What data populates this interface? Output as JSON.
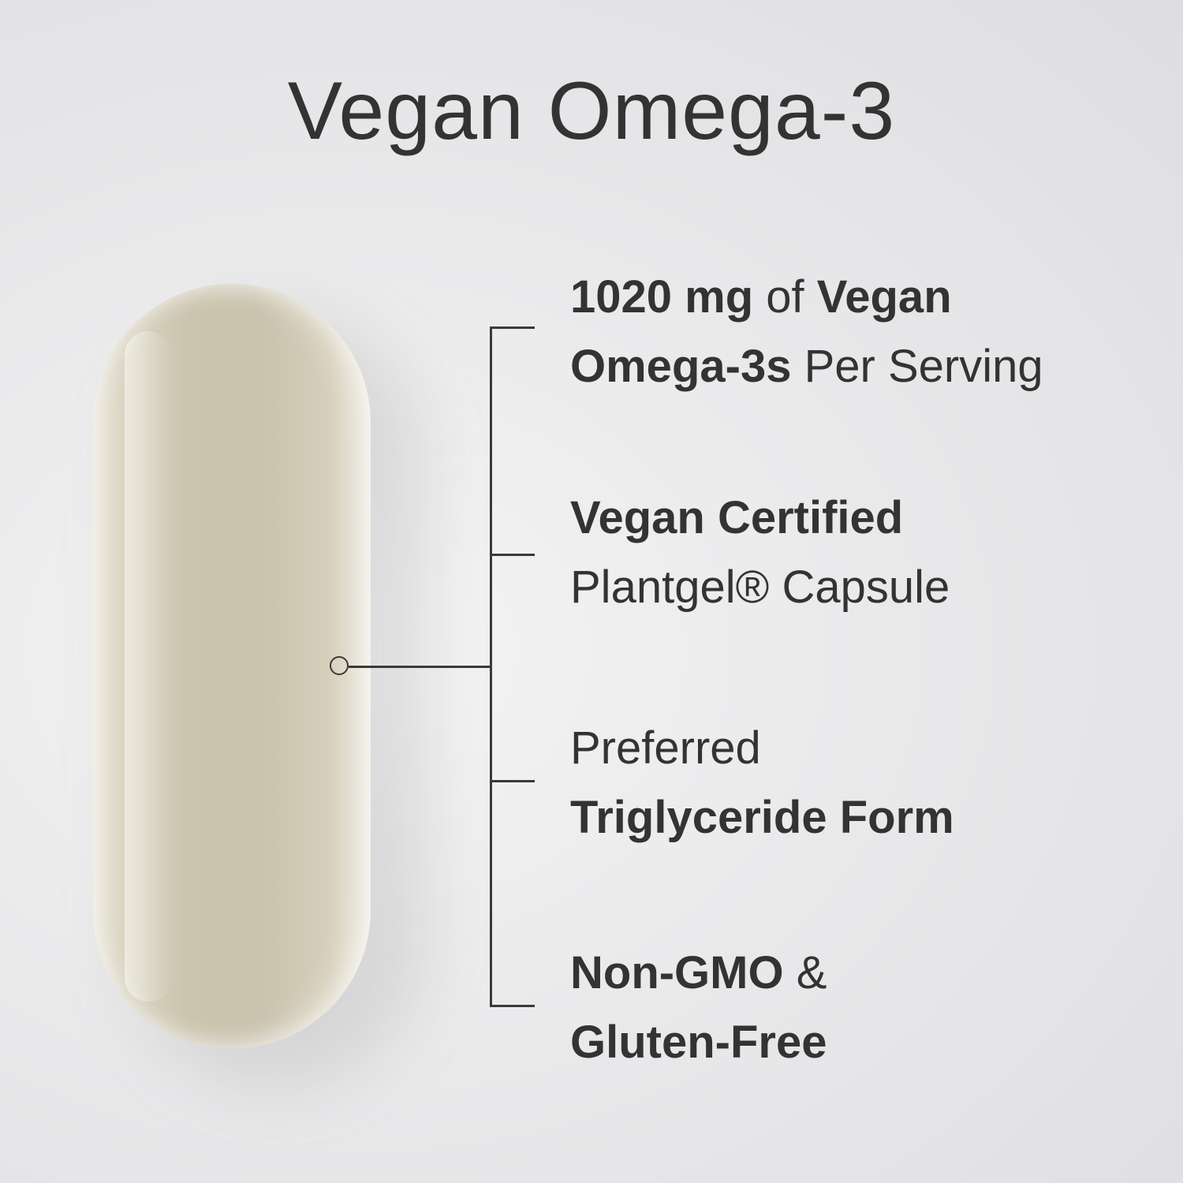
{
  "title": "Vegan Omega-3",
  "features": [
    {
      "line1": [
        {
          "t": "1020 mg",
          "b": true
        },
        {
          "t": " of ",
          "b": false
        },
        {
          "t": "Vegan",
          "b": true
        }
      ],
      "line2": [
        {
          "t": "Omega-3s",
          "b": true
        },
        {
          "t": " Per Serving",
          "b": false
        }
      ]
    },
    {
      "line1": [
        {
          "t": "Vegan Certified",
          "b": true
        }
      ],
      "line2": [
        {
          "t": "Plantgel®",
          "b": false
        },
        {
          "t": " Capsule",
          "b": false
        }
      ]
    },
    {
      "line1": [
        {
          "t": "Preferred",
          "b": false
        }
      ],
      "line2": [
        {
          "t": "Triglyceride Form",
          "b": true
        }
      ]
    },
    {
      "line1": [
        {
          "t": "Non-GMO",
          "b": true
        },
        {
          "t": " &",
          "b": false
        }
      ],
      "line2": [
        {
          "t": "Gluten-Free",
          "b": true
        }
      ]
    }
  ],
  "colors": {
    "text": "#333333",
    "capsule": "#cbc4ae",
    "background": "#e6e6e8"
  }
}
